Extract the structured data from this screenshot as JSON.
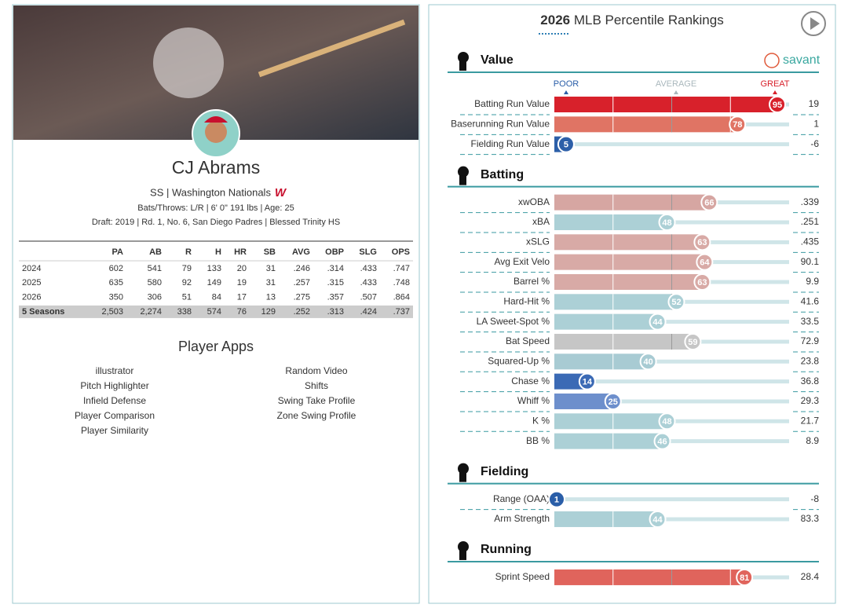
{
  "player": {
    "name": "CJ Abrams",
    "position_team": "SS | Washington Nationals",
    "bio": "Bats/Throws: L/R | 6' 0\" 191 lbs | Age: 25",
    "draft": "Draft: 2019 | Rd. 1, No. 6, San Diego Padres | Blessed Trinity HS"
  },
  "stats_table": {
    "columns": [
      "PA",
      "AB",
      "R",
      "H",
      "HR",
      "SB",
      "AVG",
      "OBP",
      "SLG",
      "OPS"
    ],
    "rows": [
      {
        "label": "2024",
        "cells": [
          "602",
          "541",
          "79",
          "133",
          "20",
          "31",
          ".246",
          ".314",
          ".433",
          ".747"
        ]
      },
      {
        "label": "2025",
        "cells": [
          "635",
          "580",
          "92",
          "149",
          "19",
          "31",
          ".257",
          ".315",
          ".433",
          ".748"
        ]
      },
      {
        "label": "2026",
        "cells": [
          "350",
          "306",
          "51",
          "84",
          "17",
          "13",
          ".275",
          ".357",
          ".507",
          ".864"
        ]
      },
      {
        "label": "5 Seasons",
        "cells": [
          "2,503",
          "2,274",
          "338",
          "574",
          "76",
          "129",
          ".252",
          ".313",
          ".424",
          ".737"
        ]
      }
    ]
  },
  "apps": {
    "title": "Player Apps",
    "left": [
      "illustrator",
      "Pitch Highlighter",
      "Infield Defense",
      "Player Comparison",
      "Player Similarity"
    ],
    "right": [
      "Random Video",
      "Shifts",
      "Swing Take Profile",
      "Zone Swing Profile"
    ]
  },
  "percentiles": {
    "season": "2026",
    "title": "MLB Percentile Rankings",
    "brand": "savant",
    "scale": [
      "POOR",
      "AVERAGE",
      "GREAT"
    ],
    "sections": [
      {
        "title": "Value",
        "rows": [
          {
            "label": "Batting Run Value",
            "percentile": 95,
            "value": "19",
            "color": "#d8212b"
          },
          {
            "label": "Baserunning Run Value",
            "percentile": 78,
            "value": "1",
            "color": "#e07464"
          },
          {
            "label": "Fielding Run Value",
            "percentile": 5,
            "value": "-6",
            "color": "#2c5fa8"
          }
        ]
      },
      {
        "title": "Batting",
        "rows": [
          {
            "label": "xwOBA",
            "percentile": 66,
            "value": ".339",
            "color": "#d6a6a2"
          },
          {
            "label": "xBA",
            "percentile": 48,
            "value": ".251",
            "color": "#acd0d6"
          },
          {
            "label": "xSLG",
            "percentile": 63,
            "value": ".435",
            "color": "#d8aaa6"
          },
          {
            "label": "Avg Exit Velo",
            "percentile": 64,
            "value": "90.1",
            "color": "#d8aaa6"
          },
          {
            "label": "Barrel %",
            "percentile": 63,
            "value": "9.9",
            "color": "#d8aaa6"
          },
          {
            "label": "Hard-Hit %",
            "percentile": 52,
            "value": "41.6",
            "color": "#acd0d6"
          },
          {
            "label": "LA Sweet-Spot %",
            "percentile": 44,
            "value": "33.5",
            "color": "#acd0d6"
          },
          {
            "label": "Bat Speed",
            "percentile": 59,
            "value": "72.9",
            "color": "#c6c6c6"
          },
          {
            "label": "Squared-Up %",
            "percentile": 40,
            "value": "23.8",
            "color": "#a8cbd3"
          },
          {
            "label": "Chase %",
            "percentile": 14,
            "value": "36.8",
            "color": "#3b6ab5"
          },
          {
            "label": "Whiff %",
            "percentile": 25,
            "value": "29.3",
            "color": "#6d8fcc"
          },
          {
            "label": "K %",
            "percentile": 48,
            "value": "21.7",
            "color": "#acd0d6"
          },
          {
            "label": "BB %",
            "percentile": 46,
            "value": "8.9",
            "color": "#acd0d6"
          }
        ]
      },
      {
        "title": "Fielding",
        "rows": [
          {
            "label": "Range (OAA)",
            "percentile": 1,
            "value": "-8",
            "color": "#2a5ea8"
          },
          {
            "label": "Arm Strength",
            "percentile": 44,
            "value": "83.3",
            "color": "#acd0d6"
          }
        ]
      },
      {
        "title": "Running",
        "rows": [
          {
            "label": "Sprint Speed",
            "percentile": 81,
            "value": "28.4",
            "color": "#e0645c"
          }
        ]
      }
    ]
  }
}
